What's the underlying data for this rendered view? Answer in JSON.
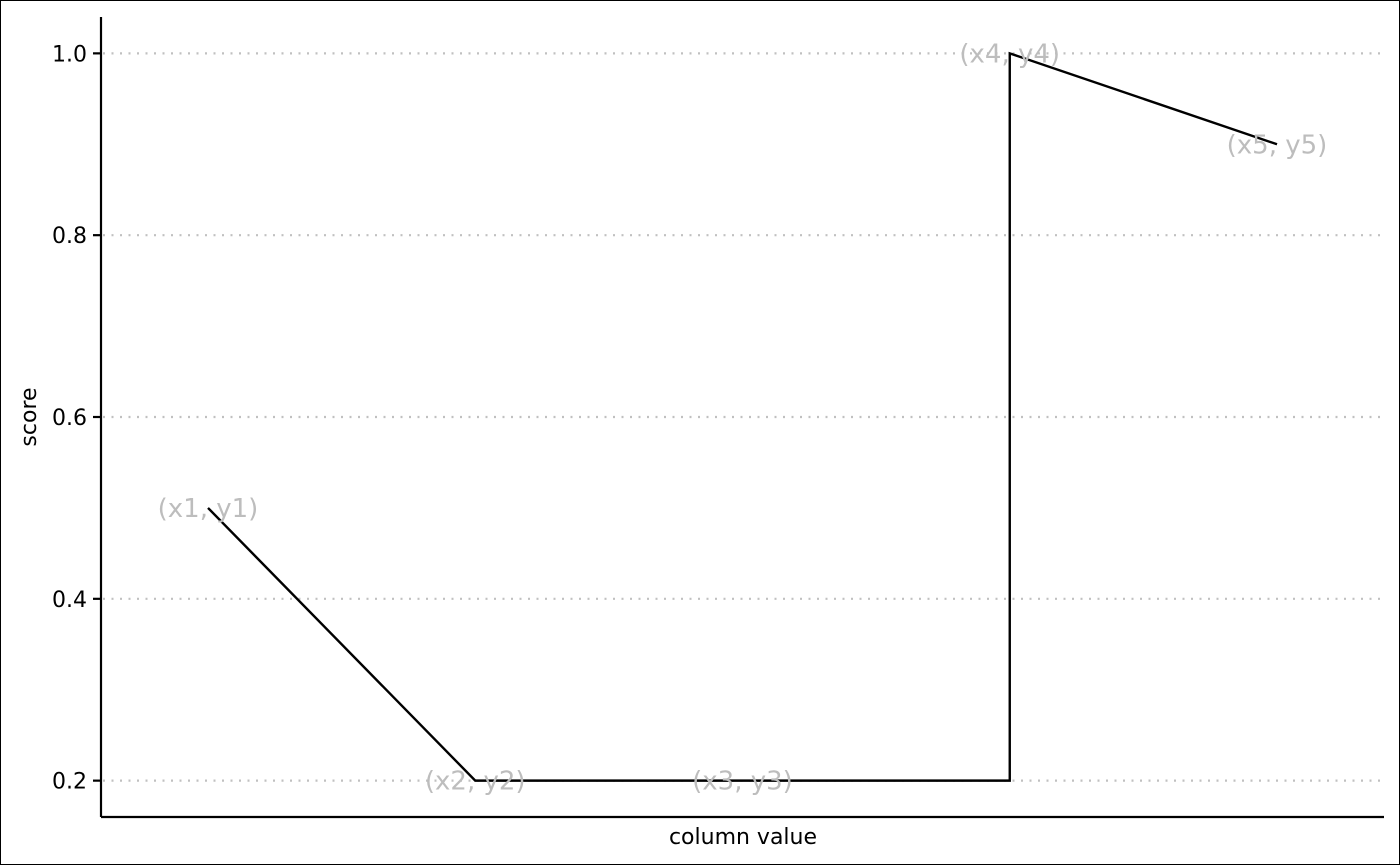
{
  "chart_data": {
    "type": "line",
    "title": "",
    "xlabel": "column value",
    "ylabel": "score",
    "ylim": [
      0.16,
      1.04
    ],
    "yticks": [
      "0.2",
      "0.4",
      "0.6",
      "0.8",
      "1.0"
    ],
    "grid": {
      "y": true,
      "x": false,
      "style": "dotted",
      "color": "#c0c0c0"
    },
    "x_tick_labels": false,
    "series": [
      {
        "points": [
          {
            "label": "(x1, y1)",
            "y": 0.5
          },
          {
            "label": "(x2, y2)",
            "y": 0.2
          },
          {
            "label": "(x3, y3)",
            "y": 0.2
          },
          {
            "label": "(x4, y4)",
            "y": 1.0
          },
          {
            "label": "(x5, y5)",
            "y": 0.9
          }
        ]
      }
    ],
    "colors": {
      "line": "#000000",
      "point_label": "#bdbdbd",
      "grid": "#c0c0c0"
    }
  }
}
